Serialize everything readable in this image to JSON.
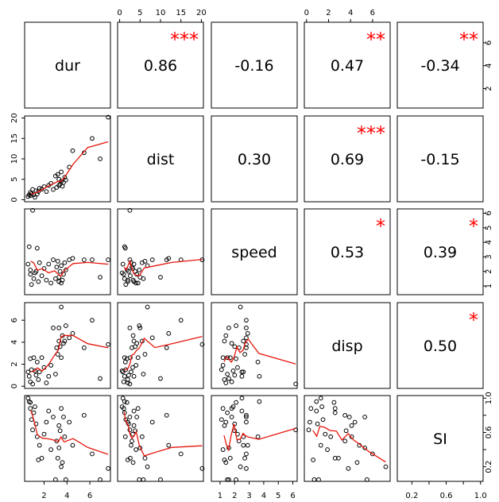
{
  "chart_data": {
    "type": "scatter-matrix",
    "variables": [
      "dur",
      "dist",
      "speed",
      "disp",
      "SI"
    ],
    "ranges": {
      "dur": [
        0.3,
        7.8
      ],
      "dist": [
        -0.5,
        20.5
      ],
      "speed": [
        0.4,
        6.3
      ],
      "disp": [
        -0.2,
        7.6
      ],
      "SI": [
        0.03,
        1.03
      ]
    },
    "ticks": {
      "dur": [
        2,
        4,
        6
      ],
      "dist": [
        0,
        5,
        10,
        15,
        20
      ],
      "speed": [
        1,
        2,
        3,
        4,
        5,
        6
      ],
      "disp": [
        0,
        2,
        4,
        6
      ],
      "SI": [
        0.2,
        0.4,
        0.6,
        0.8,
        1.0
      ]
    },
    "tick_labels": {
      "dur": [
        "2",
        "4",
        "6"
      ],
      "dist": [
        "0",
        "5",
        "10",
        "15",
        "20"
      ],
      "speed": [
        "1",
        "2",
        "3",
        "4",
        "5",
        "6"
      ],
      "disp": [
        "0",
        "2",
        "4",
        "6"
      ],
      "SI": [
        "0.2",
        "0.6",
        "1.0"
      ]
    },
    "tick_label_values": {
      "dur": [
        2,
        4,
        6
      ],
      "dist": [
        0,
        5,
        10,
        15,
        20
      ],
      "speed": [
        1,
        2,
        3,
        4,
        5,
        6
      ],
      "disp": [
        0,
        2,
        4,
        6
      ],
      "SI": [
        0.2,
        0.6,
        1.0
      ]
    },
    "correlations": [
      {
        "a": "dur",
        "b": "dist",
        "r": "0.86",
        "stars": "***"
      },
      {
        "a": "dur",
        "b": "speed",
        "r": "-0.16",
        "stars": ""
      },
      {
        "a": "dur",
        "b": "disp",
        "r": "0.47",
        "stars": "**"
      },
      {
        "a": "dur",
        "b": "SI",
        "r": "-0.34",
        "stars": "**"
      },
      {
        "a": "dist",
        "b": "speed",
        "r": "0.30",
        "stars": ""
      },
      {
        "a": "dist",
        "b": "disp",
        "r": "0.69",
        "stars": "***"
      },
      {
        "a": "dist",
        "b": "SI",
        "r": "-0.15",
        "stars": ""
      },
      {
        "a": "speed",
        "b": "disp",
        "r": "0.53",
        "stars": "*"
      },
      {
        "a": "speed",
        "b": "SI",
        "r": "0.39",
        "stars": "*"
      },
      {
        "a": "disp",
        "b": "SI",
        "r": "0.50",
        "stars": "*"
      }
    ],
    "observations": [
      {
        "dur": 0.6,
        "dist": 0.8,
        "speed": 2.5,
        "disp": 1.3,
        "SI": 1.0
      },
      {
        "dur": 0.7,
        "dist": 1.2,
        "speed": 3.7,
        "disp": 0.9,
        "SI": 0.96
      },
      {
        "dur": 0.8,
        "dist": 1.8,
        "speed": 2.1,
        "disp": 2.5,
        "SI": 0.95
      },
      {
        "dur": 0.8,
        "dist": 1.0,
        "speed": 1.8,
        "disp": 0.4,
        "SI": 0.88
      },
      {
        "dur": 0.9,
        "dist": 1.5,
        "speed": 1.1,
        "disp": 1.5,
        "SI": 0.75
      },
      {
        "dur": 1.0,
        "dist": 2.5,
        "speed": 6.2,
        "disp": 0.2,
        "SI": 0.63
      },
      {
        "dur": 1.1,
        "dist": 1.2,
        "speed": 1.5,
        "disp": 2.6,
        "SI": 0.83
      },
      {
        "dur": 1.2,
        "dist": 0.6,
        "speed": 1.9,
        "disp": 1.4,
        "SI": 0.9
      },
      {
        "dur": 1.3,
        "dist": 2.2,
        "speed": 2.0,
        "disp": 1.0,
        "SI": 0.7
      },
      {
        "dur": 1.4,
        "dist": 1.4,
        "speed": 3.6,
        "disp": 2.2,
        "SI": 0.55
      },
      {
        "dur": 1.5,
        "dist": 2.0,
        "speed": 1.3,
        "disp": 0.6,
        "SI": 0.28
      },
      {
        "dur": 1.6,
        "dist": 2.8,
        "speed": 2.6,
        "disp": 1.3,
        "SI": 0.45
      },
      {
        "dur": 1.8,
        "dist": 2.6,
        "speed": 1.7,
        "disp": 2.6,
        "SI": 0.3
      },
      {
        "dur": 2.0,
        "dist": 3.2,
        "speed": 2.2,
        "disp": 1.7,
        "SI": 0.58
      },
      {
        "dur": 2.2,
        "dist": 2.0,
        "speed": 1.4,
        "disp": 0.3,
        "SI": 0.72
      },
      {
        "dur": 2.4,
        "dist": 3.5,
        "speed": 2.5,
        "disp": 0.9,
        "SI": 0.85
      },
      {
        "dur": 2.6,
        "dist": 4.0,
        "speed": 1.2,
        "disp": 1.9,
        "SI": 0.4
      },
      {
        "dur": 2.8,
        "dist": 2.5,
        "speed": 2.8,
        "disp": 5.3,
        "SI": 0.78
      },
      {
        "dur": 3.0,
        "dist": 5.8,
        "speed": 1.5,
        "disp": 1.1,
        "SI": 0.05
      },
      {
        "dur": 3.1,
        "dist": 3.0,
        "speed": 2.3,
        "disp": 3.5,
        "SI": 0.5
      },
      {
        "dur": 3.2,
        "dist": 6.2,
        "speed": 2.7,
        "disp": 2.9,
        "SI": 0.3
      },
      {
        "dur": 3.3,
        "dist": 3.5,
        "speed": 1.3,
        "disp": 4.1,
        "SI": 0.68
      },
      {
        "dur": 3.3,
        "dist": 5.0,
        "speed": 1.6,
        "disp": 5.3,
        "SI": 0.42
      },
      {
        "dur": 3.4,
        "dist": 3.8,
        "speed": 2.0,
        "disp": 3.6,
        "SI": 0.62
      },
      {
        "dur": 3.5,
        "dist": 4.5,
        "speed": 1.2,
        "disp": 2.6,
        "SI": 0.88
      },
      {
        "dur": 3.5,
        "dist": 6.8,
        "speed": 2.4,
        "disp": 7.2,
        "SI": 0.2
      },
      {
        "dur": 3.6,
        "dist": 3.3,
        "speed": 1.4,
        "disp": 4.6,
        "SI": 0.25
      },
      {
        "dur": 3.7,
        "dist": 4.2,
        "speed": 1.8,
        "disp": 3.9,
        "SI": 0.78
      },
      {
        "dur": 3.8,
        "dist": 5.5,
        "speed": 2.6,
        "disp": 4.1,
        "SI": 0.55
      },
      {
        "dur": 3.9,
        "dist": 4.8,
        "speed": 2.1,
        "disp": 5.5,
        "SI": 0.05
      },
      {
        "dur": 4.2,
        "dist": 8.0,
        "speed": 2.8,
        "disp": 4.4,
        "SI": 0.72
      },
      {
        "dur": 4.5,
        "dist": 12.0,
        "speed": 2.9,
        "disp": 4.8,
        "SI": 0.45
      },
      {
        "dur": 5.5,
        "dist": 11.5,
        "speed": 2.8,
        "disp": 3.5,
        "SI": 0.8
      },
      {
        "dur": 6.2,
        "dist": 15.0,
        "speed": 2.8,
        "disp": 6.0,
        "SI": 0.35
      },
      {
        "dur": 6.9,
        "dist": 10.0,
        "speed": 1.6,
        "disp": 0.7,
        "SI": 0.05
      },
      {
        "dur": 7.6,
        "dist": 20.2,
        "speed": 2.8,
        "disp": 3.8,
        "SI": 0.18
      }
    ]
  }
}
